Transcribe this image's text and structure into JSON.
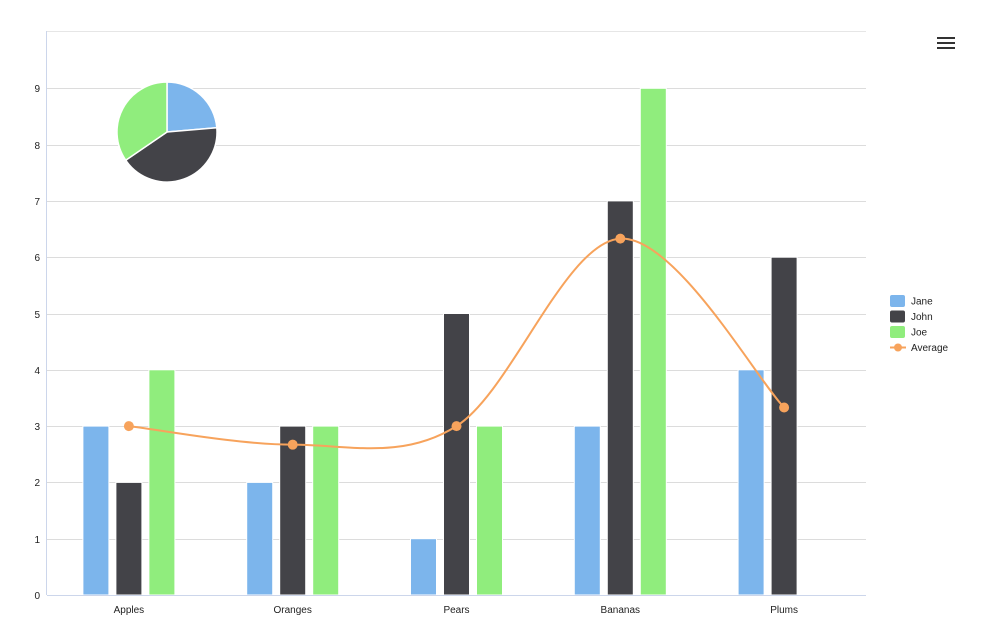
{
  "chart_data": [
    {
      "type": "bar+line",
      "title": "",
      "xlabel": "",
      "ylabel": "",
      "categories": [
        "Apples",
        "Oranges",
        "Pears",
        "Bananas",
        "Plums"
      ],
      "series": [
        {
          "name": "Jane",
          "type": "column",
          "color": "#7cb5ec",
          "values": [
            3,
            2,
            1,
            3,
            4
          ]
        },
        {
          "name": "John",
          "type": "column",
          "color": "#434348",
          "values": [
            2,
            3,
            5,
            7,
            6
          ]
        },
        {
          "name": "Joe",
          "type": "column",
          "color": "#90ed7d",
          "values": [
            4,
            3,
            3,
            9,
            0
          ]
        },
        {
          "name": "Average",
          "type": "spline",
          "color": "#f7a35c",
          "values": [
            3,
            2.67,
            3,
            6.33,
            3.33
          ]
        }
      ],
      "ylim": [
        0,
        10
      ],
      "yticks": [
        0,
        1,
        2,
        3,
        4,
        5,
        6,
        7,
        8,
        9
      ],
      "grid": true,
      "legend_position": "right"
    },
    {
      "type": "pie",
      "title": "",
      "slices": [
        {
          "name": "Jane",
          "value": 13,
          "color": "#7cb5ec"
        },
        {
          "name": "John",
          "value": 23,
          "color": "#434348"
        },
        {
          "name": "Joe",
          "value": 19,
          "color": "#90ed7d"
        }
      ]
    }
  ],
  "menu_icon": "hamburger-menu-icon"
}
